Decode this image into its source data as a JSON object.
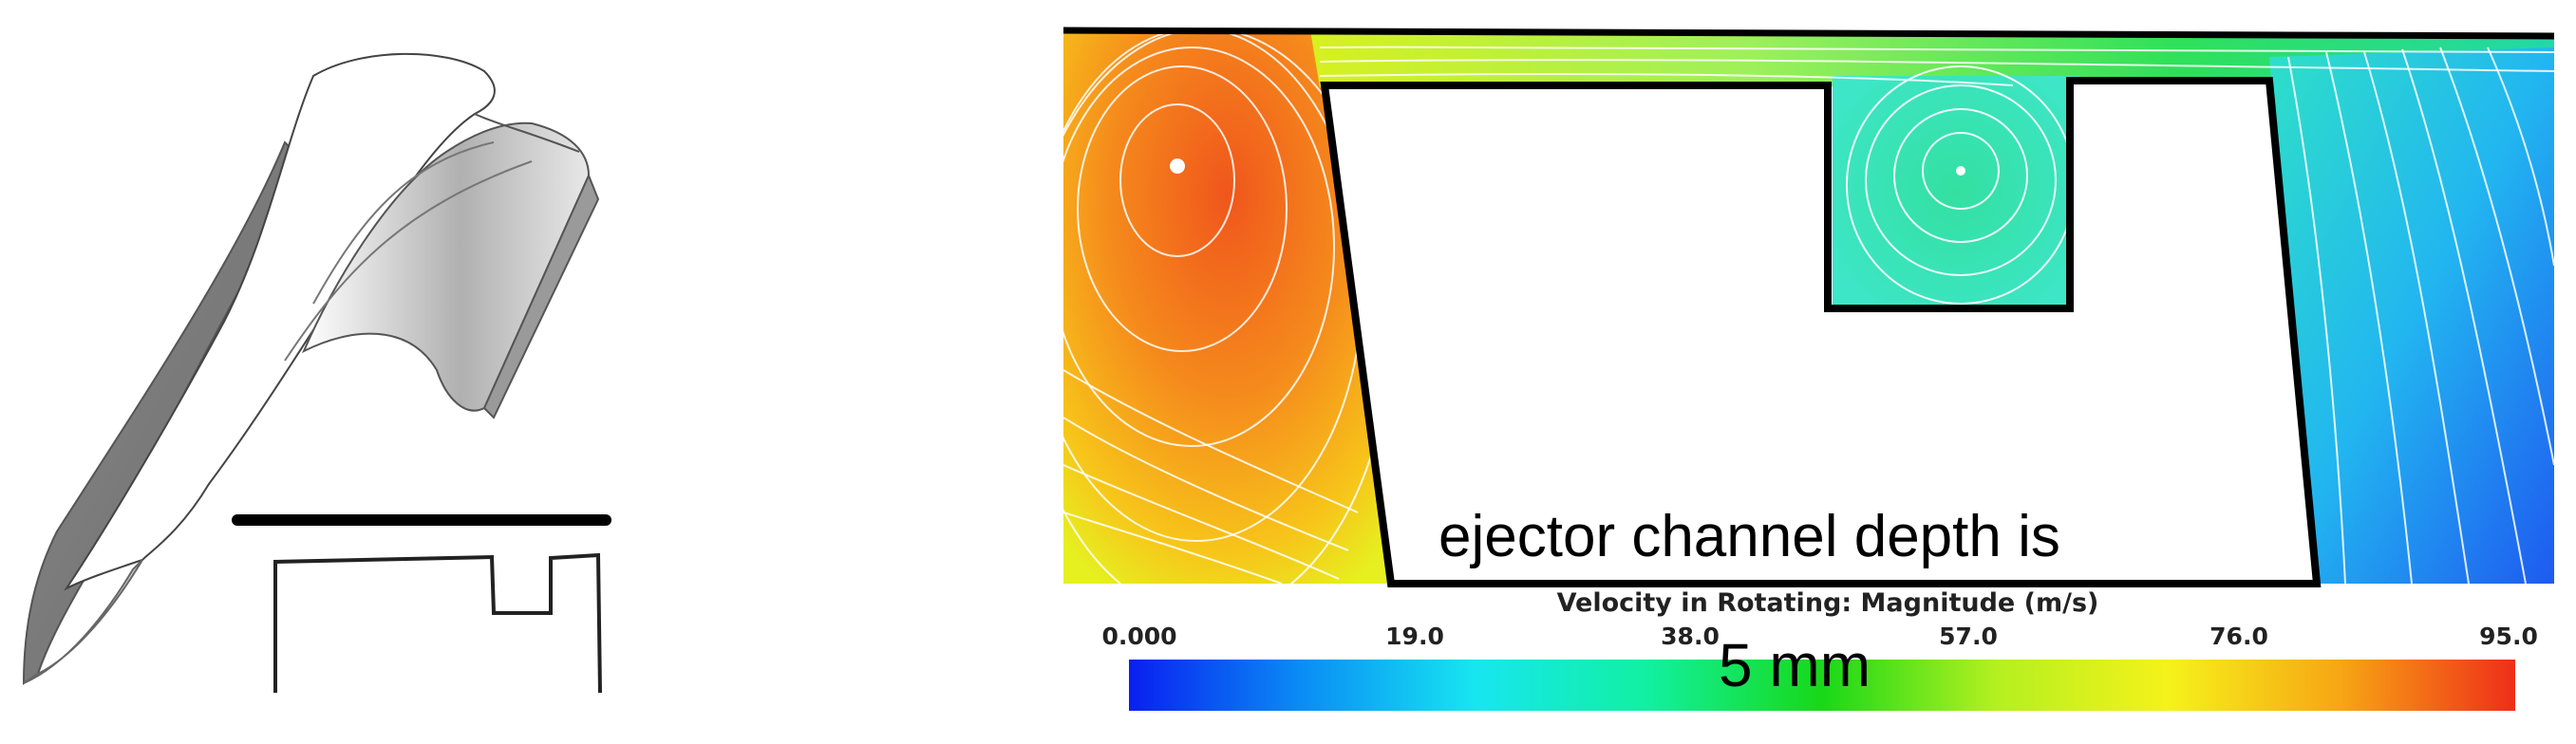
{
  "caption": {
    "line1": "ejector channel depth is",
    "line2": "5 mm"
  },
  "colorbar": {
    "title": "Velocity in Rotating: Magnitude (m/s)",
    "ticks": [
      "0.000",
      "19.0",
      "38.0",
      "57.0",
      "76.0",
      "95.0"
    ],
    "colors": [
      "#0a1ff0",
      "#0a8df5",
      "#17e6f0",
      "#11f0a0",
      "#18d818",
      "#b4f020",
      "#f5f21a",
      "#f7a514",
      "#ee2e1a"
    ]
  }
}
